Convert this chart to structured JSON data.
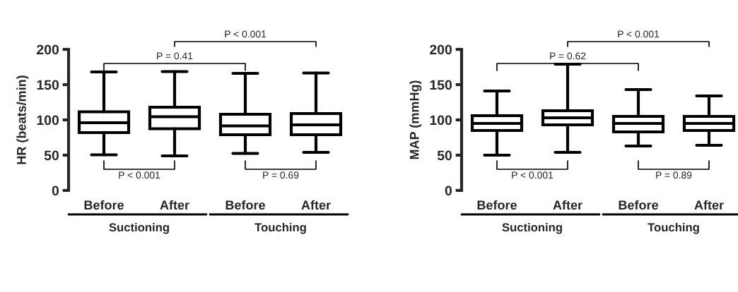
{
  "chart_data": [
    {
      "type": "box",
      "ylabel": "HR (beats/min)",
      "categories": [
        "Before",
        "After",
        "Before",
        "After"
      ],
      "boxes": [
        {
          "low": 50.5,
          "q1": 82,
          "median": 96,
          "q3": 111.5,
          "high": 168
        },
        {
          "low": 49,
          "q1": 87.5,
          "median": 104.5,
          "q3": 118,
          "high": 168.5
        },
        {
          "low": 52.5,
          "q1": 79,
          "median": 91.5,
          "q3": 108,
          "high": 166
        },
        {
          "low": 54,
          "q1": 79,
          "median": 93,
          "q3": 109,
          "high": 166.5
        }
      ],
      "ylim": [
        0,
        200
      ],
      "yticks": [
        0,
        50,
        100,
        150,
        200
      ],
      "annotations": [
        "P < 0.001",
        "P = 0.41",
        "P < 0.001",
        "P = 0.69",
        "Suctioning",
        "Touching"
      ]
    },
    {
      "type": "box",
      "ylabel": "MAP (mmHg)",
      "categories": [
        "Before",
        "After",
        "Before",
        "After"
      ],
      "boxes": [
        {
          "low": 50,
          "q1": 85,
          "median": 95,
          "q3": 106,
          "high": 141
        },
        {
          "low": 54,
          "q1": 93,
          "median": 103,
          "q3": 113,
          "high": 179
        },
        {
          "low": 63,
          "q1": 83,
          "median": 95,
          "q3": 105,
          "high": 143
        },
        {
          "low": 64,
          "q1": 85,
          "median": 95,
          "q3": 105,
          "high": 134
        }
      ],
      "ylim": [
        0,
        200
      ],
      "yticks": [
        0,
        50,
        100,
        150,
        200
      ],
      "annotations": [
        "P < 0.001",
        "P = 0.62",
        "P < 0.001",
        "P = 0.89",
        "Suctioning",
        "Touching"
      ]
    }
  ]
}
